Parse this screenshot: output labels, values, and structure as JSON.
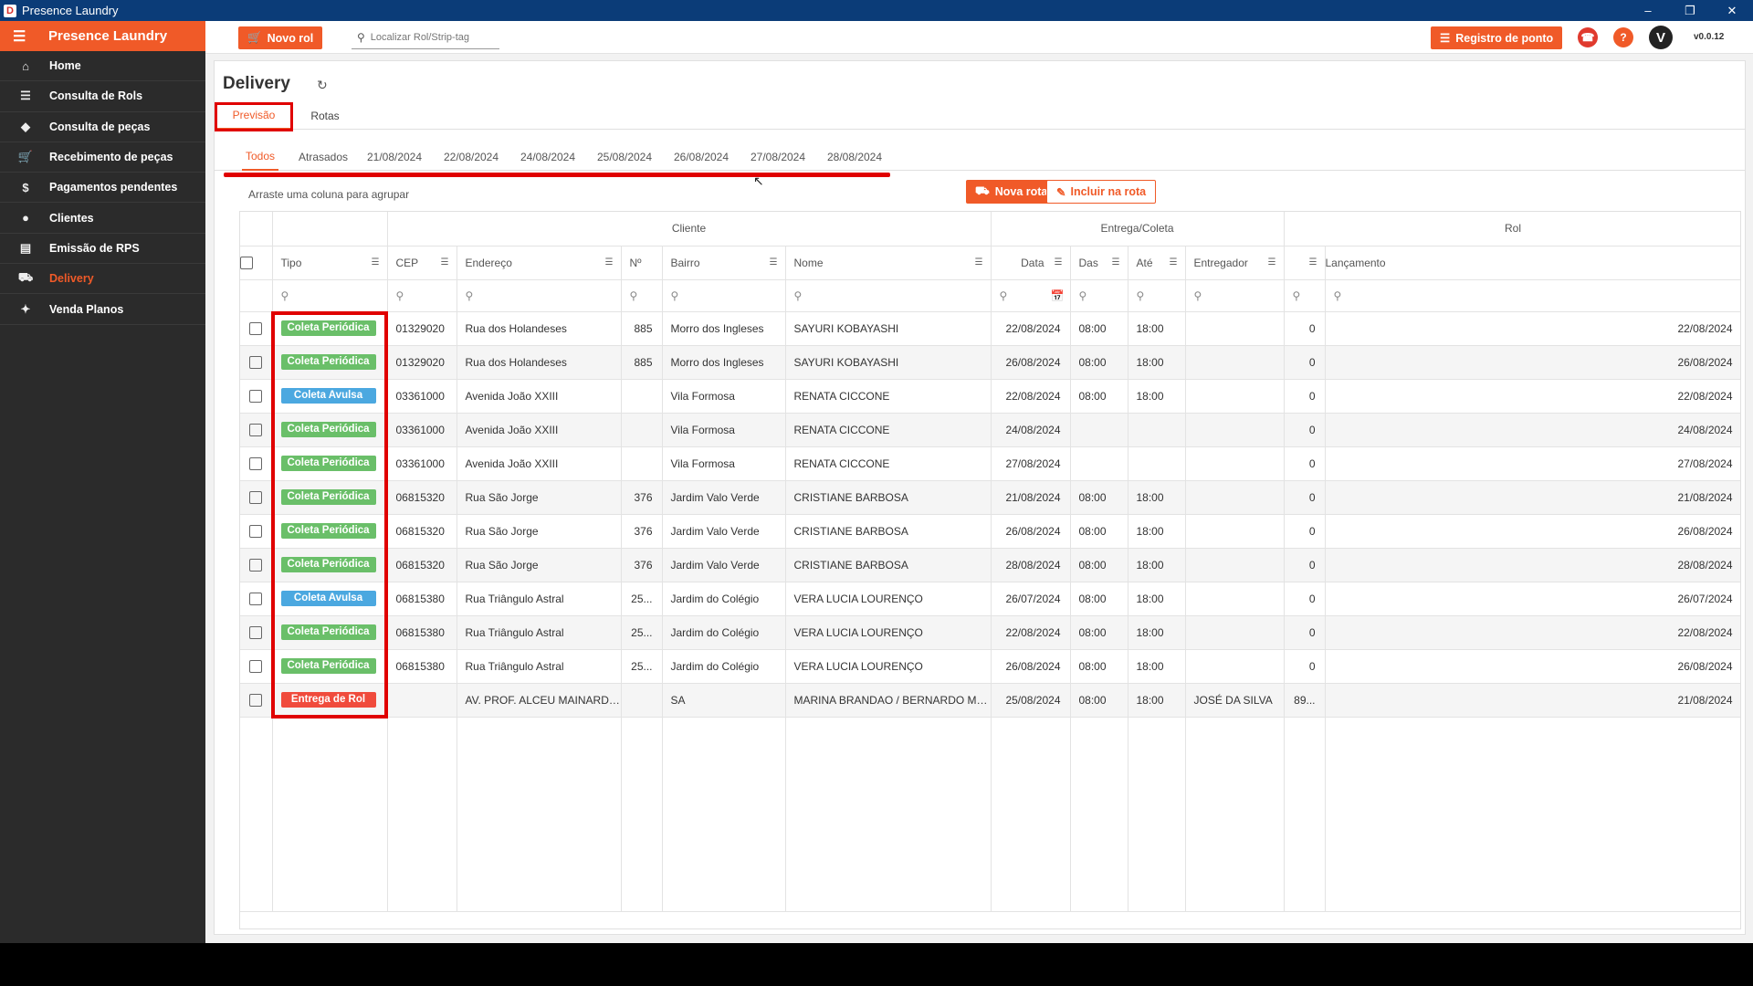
{
  "window": {
    "title": "Presence Laundry",
    "logo_letter": "D"
  },
  "sidebar": {
    "brand": "Presence Laundry",
    "items": [
      {
        "label": "Home",
        "icon": "home-icon"
      },
      {
        "label": "Consulta de Rols",
        "icon": "list-icon"
      },
      {
        "label": "Consulta de peças",
        "icon": "tag-icon"
      },
      {
        "label": "Recebimento de peças",
        "icon": "cart-icon"
      },
      {
        "label": "Pagamentos pendentes",
        "icon": "dollar-icon"
      },
      {
        "label": "Clientes",
        "icon": "user-icon"
      },
      {
        "label": "Emissão de RPS",
        "icon": "document-icon"
      },
      {
        "label": "Delivery",
        "icon": "truck-icon",
        "active": true
      },
      {
        "label": "Venda Planos",
        "icon": "plan-icon"
      }
    ]
  },
  "topbar": {
    "new_rol_label": "Novo rol",
    "search_placeholder": "Localizar Rol/Strip-tag",
    "registro_label": "Registro de ponto",
    "avatar_letter": "V",
    "version": "v0.0.12",
    "colors": {
      "whatsapp": "#e03a2e",
      "help": "#f05a28",
      "avatar": "#222222"
    }
  },
  "page": {
    "title": "Delivery",
    "tabs": [
      "Previsão",
      "Rotas"
    ],
    "subtabs": [
      "Todos",
      "Atrasados",
      "21/08/2024",
      "22/08/2024",
      "24/08/2024",
      "25/08/2024",
      "26/08/2024",
      "27/08/2024",
      "28/08/2024"
    ],
    "group_hint": "Arraste uma coluna para agrupar",
    "nova_rota_label": "Nova rota",
    "incluir_label": "Incluir na rota"
  },
  "grid": {
    "groups": {
      "cliente": "Cliente",
      "entrega": "Entrega/Coleta",
      "rol": "Rol"
    },
    "columns": [
      "Tipo",
      "CEP",
      "Endereço",
      "Nº",
      "Bairro",
      "Nome",
      "Data",
      "Das",
      "Até",
      "Entregador",
      "",
      "Lançamento"
    ],
    "rows": [
      {
        "tipo": "Coleta Periódica",
        "cor": "green",
        "cep": "01329020",
        "end": "Rua dos Holandeses",
        "num": "885",
        "bairro": "Morro dos Ingleses",
        "nome": "SAYURI KOBAYASHI",
        "data": "22/08/2024",
        "das": "08:00",
        "ate": "18:00",
        "entregador": "",
        "rol": "0",
        "lanc": "22/08/2024"
      },
      {
        "tipo": "Coleta Periódica",
        "cor": "green",
        "cep": "01329020",
        "end": "Rua dos Holandeses",
        "num": "885",
        "bairro": "Morro dos Ingleses",
        "nome": "SAYURI KOBAYASHI",
        "data": "26/08/2024",
        "das": "08:00",
        "ate": "18:00",
        "entregador": "",
        "rol": "0",
        "lanc": "26/08/2024"
      },
      {
        "tipo": "Coleta Avulsa",
        "cor": "blue",
        "cep": "03361000",
        "end": "Avenida João XXIII",
        "num": "",
        "bairro": "Vila Formosa",
        "nome": "RENATA CICCONE",
        "data": "22/08/2024",
        "das": "08:00",
        "ate": "18:00",
        "entregador": "",
        "rol": "0",
        "lanc": "22/08/2024"
      },
      {
        "tipo": "Coleta Periódica",
        "cor": "green",
        "cep": "03361000",
        "end": "Avenida João XXIII",
        "num": "",
        "bairro": "Vila Formosa",
        "nome": "RENATA CICCONE",
        "data": "24/08/2024",
        "das": "",
        "ate": "",
        "entregador": "",
        "rol": "0",
        "lanc": "24/08/2024"
      },
      {
        "tipo": "Coleta Periódica",
        "cor": "green",
        "cep": "03361000",
        "end": "Avenida João XXIII",
        "num": "",
        "bairro": "Vila Formosa",
        "nome": "RENATA CICCONE",
        "data": "27/08/2024",
        "das": "",
        "ate": "",
        "entregador": "",
        "rol": "0",
        "lanc": "27/08/2024"
      },
      {
        "tipo": "Coleta Periódica",
        "cor": "green",
        "cep": "06815320",
        "end": "Rua São Jorge",
        "num": "376",
        "bairro": "Jardim Valo Verde",
        "nome": "CRISTIANE BARBOSA",
        "data": "21/08/2024",
        "das": "08:00",
        "ate": "18:00",
        "entregador": "",
        "rol": "0",
        "lanc": "21/08/2024"
      },
      {
        "tipo": "Coleta Periódica",
        "cor": "green",
        "cep": "06815320",
        "end": "Rua São Jorge",
        "num": "376",
        "bairro": "Jardim Valo Verde",
        "nome": "CRISTIANE BARBOSA",
        "data": "26/08/2024",
        "das": "08:00",
        "ate": "18:00",
        "entregador": "",
        "rol": "0",
        "lanc": "26/08/2024"
      },
      {
        "tipo": "Coleta Periódica",
        "cor": "green",
        "cep": "06815320",
        "end": "Rua São Jorge",
        "num": "376",
        "bairro": "Jardim Valo Verde",
        "nome": "CRISTIANE BARBOSA",
        "data": "28/08/2024",
        "das": "08:00",
        "ate": "18:00",
        "entregador": "",
        "rol": "0",
        "lanc": "28/08/2024"
      },
      {
        "tipo": "Coleta Avulsa",
        "cor": "blue",
        "cep": "06815380",
        "end": "Rua Triângulo Astral",
        "num": "25...",
        "bairro": "Jardim do Colégio",
        "nome": "VERA LUCIA LOURENÇO",
        "data": "26/07/2024",
        "das": "08:00",
        "ate": "18:00",
        "entregador": "",
        "rol": "0",
        "lanc": "26/07/2024"
      },
      {
        "tipo": "Coleta Periódica",
        "cor": "green",
        "cep": "06815380",
        "end": "Rua Triângulo Astral",
        "num": "25...",
        "bairro": "Jardim do Colégio",
        "nome": "VERA LUCIA LOURENÇO",
        "data": "22/08/2024",
        "das": "08:00",
        "ate": "18:00",
        "entregador": "",
        "rol": "0",
        "lanc": "22/08/2024"
      },
      {
        "tipo": "Coleta Periódica",
        "cor": "green",
        "cep": "06815380",
        "end": "Rua Triângulo Astral",
        "num": "25...",
        "bairro": "Jardim do Colégio",
        "nome": "VERA LUCIA LOURENÇO",
        "data": "26/08/2024",
        "das": "08:00",
        "ate": "18:00",
        "entregador": "",
        "rol": "0",
        "lanc": "26/08/2024"
      },
      {
        "tipo": "Entrega de Rol",
        "cor": "red",
        "cep": "",
        "end": "AV. PROF. ALCEU MAINARD ...",
        "num": "",
        "bairro": "SA",
        "nome": "MARINA BRANDAO / BERNARDO MA...",
        "data": "25/08/2024",
        "das": "08:00",
        "ate": "18:00",
        "entregador": "JOSÉ DA SILVA",
        "rol": "89...",
        "lanc": "21/08/2024"
      }
    ]
  }
}
